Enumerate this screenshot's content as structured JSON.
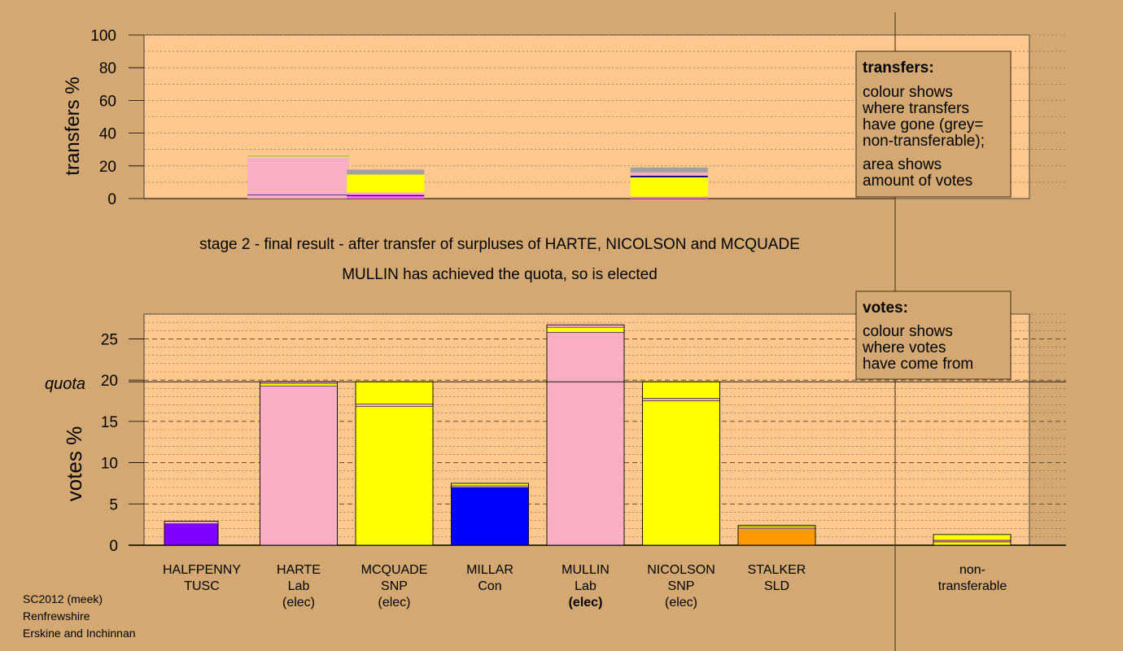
{
  "chart_data": [
    {
      "type": "bar",
      "ylabel": "transfers %",
      "ylim": [
        0,
        100
      ],
      "yticks": [
        0,
        20,
        40,
        60,
        80,
        100
      ],
      "bars": [
        {
          "index": 1,
          "stack": [
            {
              "v": 2,
              "color": "#f9aec4"
            },
            {
              "v": 0.4,
              "color": "#000080"
            },
            {
              "v": 0.6,
              "color": "#f9aec4"
            },
            {
              "v": 22,
              "color": "#f9aec4"
            },
            {
              "v": 0.6,
              "color": "#ffff00"
            },
            {
              "v": 0.6,
              "color": "#a0a0a0"
            }
          ]
        },
        {
          "index": 2,
          "stack": [
            {
              "v": 1.5,
              "color": "#ff66ff"
            },
            {
              "v": 0.6,
              "color": "#000080"
            },
            {
              "v": 0.6,
              "color": "#ff66ff"
            },
            {
              "v": 1,
              "color": "#f9aec4"
            },
            {
              "v": 11,
              "color": "#ffff00"
            },
            {
              "v": 3,
              "color": "#a0a0a0"
            }
          ]
        },
        {
          "index": 5,
          "stack": [
            {
              "v": 1,
              "color": "#ff66ff"
            },
            {
              "v": 12,
              "color": "#ffff00"
            },
            {
              "v": 1,
              "color": "#000080"
            },
            {
              "v": 2,
              "color": "#f9aec4"
            },
            {
              "v": 3,
              "color": "#a0a0a0"
            }
          ]
        }
      ],
      "legend": {
        "title": "transfers:",
        "lines1": [
          "colour shows",
          "where transfers",
          "have gone (grey=",
          "non-transferable);"
        ],
        "lines2": [
          "area shows",
          "amount of votes"
        ]
      }
    },
    {
      "type": "bar",
      "ylabel": "votes %",
      "ylim": [
        0,
        28
      ],
      "yticks": [
        0,
        5,
        10,
        15,
        20,
        25
      ],
      "quota": {
        "label": "quota",
        "value": 19.8
      },
      "categories": [
        {
          "lines": [
            "HALFPENNY",
            "TUSC"
          ],
          "bold": false
        },
        {
          "lines": [
            "HARTE",
            "Lab",
            "(elec)"
          ],
          "bold": false
        },
        {
          "lines": [
            "MCQUADE",
            "SNP",
            "(elec)"
          ],
          "bold": false
        },
        {
          "lines": [
            "MILLAR",
            "Con"
          ],
          "bold": false
        },
        {
          "lines": [
            "MULLIN",
            "Lab",
            "(elec)"
          ],
          "bold": true
        },
        {
          "lines": [
            "NICOLSON",
            "SNP",
            "(elec)"
          ],
          "bold": false
        },
        {
          "lines": [
            "STALKER",
            "SLD"
          ],
          "bold": false
        },
        {
          "lines": [
            "",
            ""
          ],
          "bold": false
        },
        {
          "lines": [
            "non-",
            "transferable"
          ],
          "bold": false
        }
      ],
      "bars": [
        {
          "index": 0,
          "stack": [
            {
              "v": 2.6,
              "color": "#8000ff"
            },
            {
              "v": 0.3,
              "color": "#f9aec4"
            }
          ]
        },
        {
          "index": 1,
          "stack": [
            {
              "v": 19.3,
              "color": "#f9aec4"
            },
            {
              "v": 0.3,
              "color": "#ffff00"
            },
            {
              "v": 0.2,
              "color": "#f9aec4"
            }
          ]
        },
        {
          "index": 2,
          "stack": [
            {
              "v": 16.8,
              "color": "#ffff00"
            },
            {
              "v": 0.3,
              "color": "#f9aec4"
            },
            {
              "v": 2.7,
              "color": "#ffff00"
            }
          ]
        },
        {
          "index": 3,
          "stack": [
            {
              "v": 7.0,
              "color": "#0000ff"
            },
            {
              "v": 0.2,
              "color": "#f9aec4"
            },
            {
              "v": 0.3,
              "color": "#ffff00"
            }
          ]
        },
        {
          "index": 4,
          "stack": [
            {
              "v": 25.8,
              "color": "#f9aec4"
            },
            {
              "v": 0.6,
              "color": "#ffff00"
            },
            {
              "v": 0.3,
              "color": "#f9aec4"
            }
          ]
        },
        {
          "index": 5,
          "stack": [
            {
              "v": 17.5,
              "color": "#ffff00"
            },
            {
              "v": 0.3,
              "color": "#f9aec4"
            },
            {
              "v": 2.0,
              "color": "#ffff00"
            }
          ]
        },
        {
          "index": 6,
          "stack": [
            {
              "v": 2.0,
              "color": "#ff9900"
            },
            {
              "v": 0.2,
              "color": "#f9aec4"
            },
            {
              "v": 0.2,
              "color": "#ffff00"
            }
          ]
        },
        {
          "index": 8,
          "stack": [
            {
              "v": 0.4,
              "color": "#ffff00"
            },
            {
              "v": 0.2,
              "color": "#ff66ff"
            },
            {
              "v": 0.7,
              "color": "#ffff00"
            }
          ]
        }
      ],
      "legend": {
        "title": "votes:",
        "lines1": [
          "colour shows",
          "where votes",
          "have come from"
        ]
      }
    }
  ],
  "captions": {
    "stage": "stage 2 - final result - after transfer of surpluses of HARTE, NICOLSON and MCQUADE",
    "elected": "MULLIN has achieved the quota, so is elected"
  },
  "footer": {
    "line1": "SC2012 (meek)",
    "line2": "Renfrewshire",
    "line3": "Erskine and Inchinnan"
  },
  "colors": {
    "background": "#d4a872",
    "plot_fill": "#fcc88e",
    "legend_fill": "#d4a872",
    "bar_outline": "#000000"
  }
}
